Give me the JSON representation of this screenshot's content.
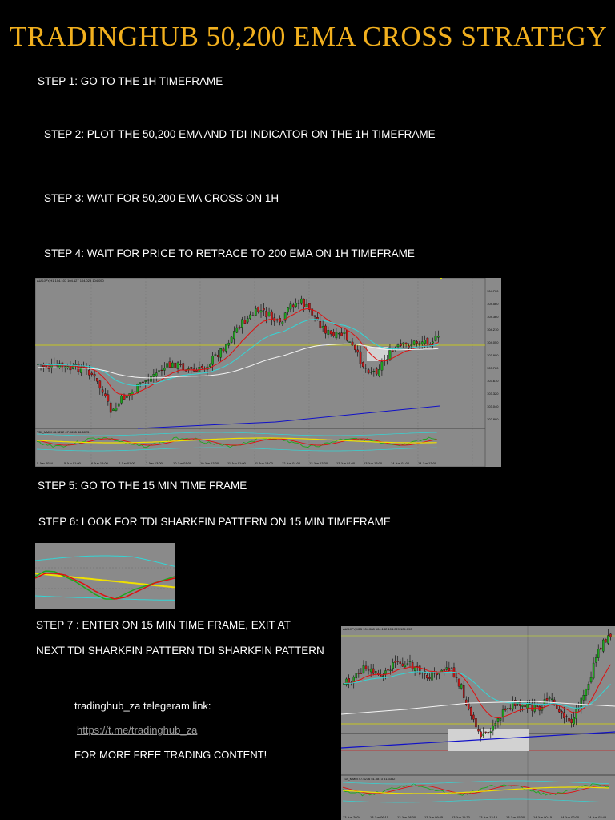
{
  "title": "TRADINGHUB 50,200 EMA CROSS STRATEGY",
  "steps": [
    "STEP 1: GO TO THE 1H TIMEFRAME",
    "STEP 2: PLOT THE 50,200 EMA AND TDI INDICATOR ON THE 1H TIMEFRAME",
    "STEP 3: WAIT FOR 50,200 EMA CROSS ON 1H",
    "STEP 4: WAIT FOR PRICE TO RETRACE TO 200 EMA ON 1H TIMEFRAME",
    "STEP 5: GO TO THE 15 MIN TIME FRAME",
    "STEP 6: LOOK FOR TDI SHARKFIN PATTERN ON 15 MIN TIMEFRAME",
    "STEP 7 : ENTER ON 15 MIN TIME FRAME, EXIT AT",
    "NEXT TDI SHARKFIN PATTERN TDI SHARKFIN PATTERN"
  ],
  "chart1": {
    "header": "AUDJPY,H1 104.107 104.127 104.029 104.050",
    "indicator_label": "TDI_MMM 46.3262 47.0635 46.6025",
    "price_labels": [
      "104.700",
      "104.560",
      "104.360",
      "104.210",
      "104.050",
      "103.900",
      "103.760",
      "103.610",
      "103.320",
      "103.040",
      "102.880"
    ],
    "time_labels": [
      "5 Jun 2024",
      "5 Jun 01:00",
      "6 Jun 15:00",
      "7 Jun 01:00",
      "7 Jun 13:00",
      "10 Jun 01:00",
      "10 Jun 13:00",
      "11 Jun 01:00",
      "11 Jun 13:00",
      "12 Jun 01:00",
      "12 Jun 13:00",
      "13 Jun 01:00",
      "13 Jun 13:00",
      "14 Jun 01:00",
      "14 Jun 13:00"
    ]
  },
  "chart3": {
    "header": "AUDJPY,M15 104.088 104.132 104.029 104.090",
    "indicator_label": "TDI_MMM 47.5236 51.0873 51.3352",
    "time_labels": [
      "13 Jun 2024",
      "13 Jun 06:15",
      "13 Jun 08:00",
      "13 Jun 09:45",
      "13 Jun 11:30",
      "13 Jun 13:15",
      "13 Jun 15:00",
      "14 Jun 00:15",
      "14 Jun 02:00",
      "14 Jun 03:45"
    ]
  },
  "footer": {
    "telegram_label": "tradinghub_za telegeram link:",
    "link": "https://t.me/tradinghub_za",
    "more": "FOR MORE FREE TRADING CONTENT!"
  }
}
